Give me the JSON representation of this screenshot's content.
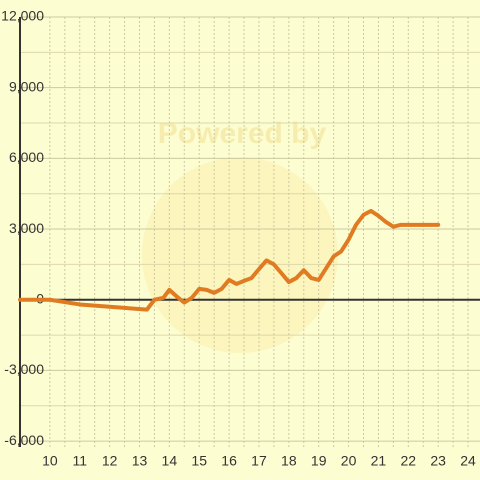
{
  "chart_data": {
    "type": "line",
    "watermark": "Powered by",
    "x": [
      9,
      10,
      11,
      13.25,
      13.5,
      13.8,
      14,
      14.3,
      14.5,
      14.75,
      15,
      15.25,
      15.5,
      15.75,
      16,
      16.25,
      16.5,
      16.75,
      17,
      17.25,
      17.5,
      17.75,
      18,
      18.25,
      18.5,
      18.75,
      19,
      19.25,
      19.5,
      19.75,
      20,
      20.25,
      20.5,
      20.75,
      21,
      21.25,
      21.5,
      21.75,
      22,
      23
    ],
    "series": [
      {
        "color": "#e07b22",
        "values": [
          0,
          0,
          -200,
          -420,
          0,
          80,
          420,
          80,
          -120,
          80,
          460,
          420,
          290,
          460,
          840,
          670,
          800,
          920,
          1300,
          1670,
          1500,
          1130,
          750,
          920,
          1250,
          920,
          840,
          1340,
          1840,
          2050,
          2550,
          3180,
          3600,
          3770,
          3560,
          3300,
          3100,
          3180,
          3180,
          3180
        ]
      }
    ],
    "xlim": [
      9,
      24.4
    ],
    "xticks": [
      10,
      11,
      12,
      13,
      14,
      15,
      16,
      17,
      18,
      19,
      20,
      21,
      22,
      23,
      24
    ],
    "ylim": [
      -6250,
      12000
    ],
    "yticks": [
      {
        "value": -6000,
        "label": "-6,000"
      },
      {
        "value": -3000,
        "label": "-3,000"
      },
      0,
      {
        "value": 3000,
        "label": "3,000"
      },
      {
        "value": 6000,
        "label": "6,000"
      },
      {
        "value": 9000,
        "label": "9,000"
      },
      {
        "value": 12000,
        "label": "12,000"
      }
    ],
    "grid": true
  }
}
